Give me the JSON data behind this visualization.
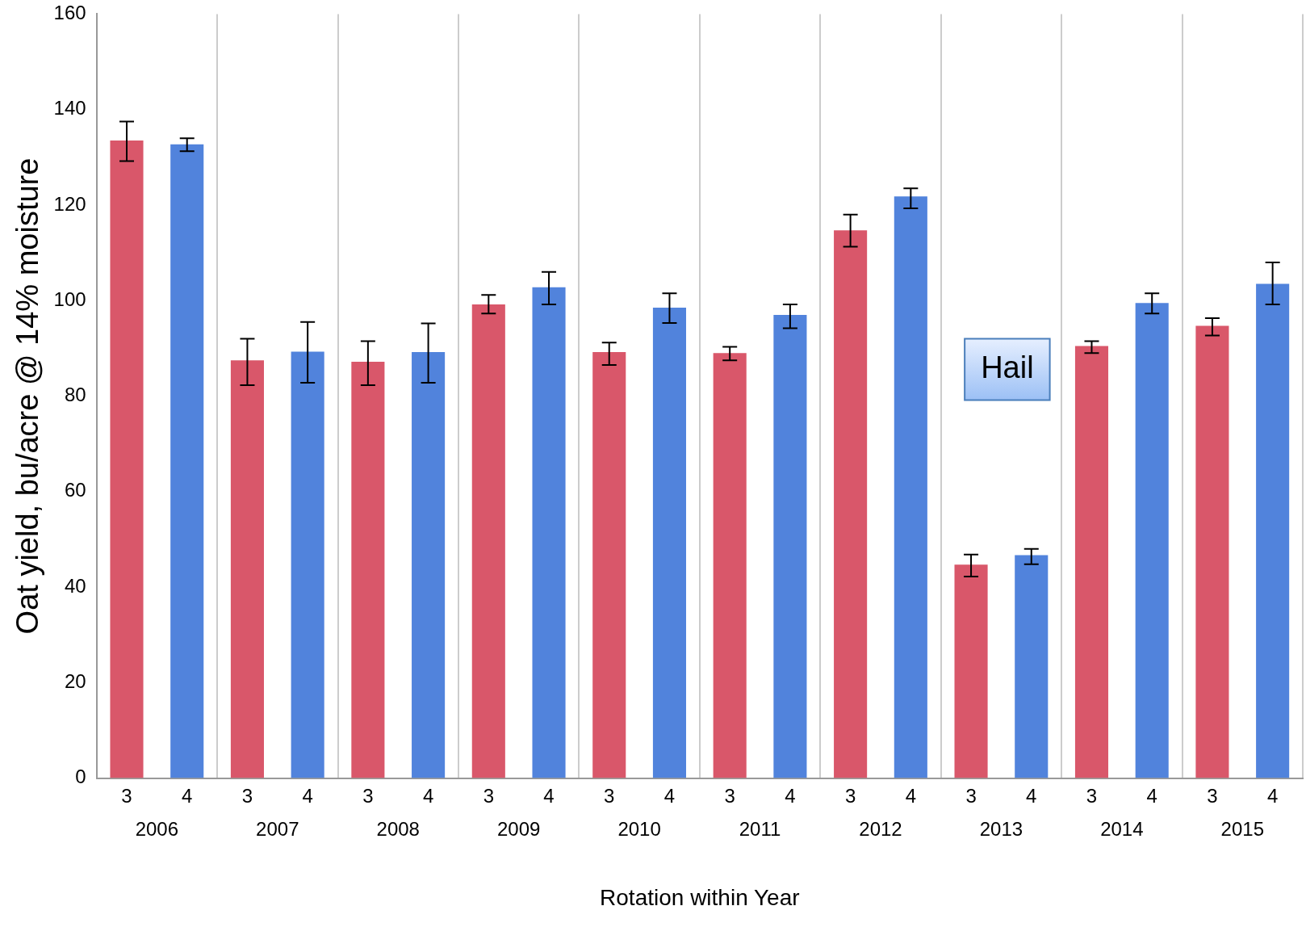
{
  "chart_data": {
    "type": "bar",
    "xlabel": "Rotation within Year",
    "ylabel": "Oat yield, bu/acre @ 14% moisture",
    "categories": [
      "2006",
      "2007",
      "2008",
      "2009",
      "2010",
      "2011",
      "2012",
      "2013",
      "2014",
      "2015"
    ],
    "series": [
      {
        "name": "3",
        "color": "#d9576a",
        "values": [
          133.5,
          87.5,
          87.2,
          99.2,
          89.2,
          89,
          114.7,
          44.7,
          90.5,
          94.7
        ],
        "errors": [
          [
            129.2,
            137.5
          ],
          [
            82.3,
            92
          ],
          [
            82.3,
            91.5
          ],
          [
            97.3,
            101.2
          ],
          [
            86.5,
            91.2
          ],
          [
            87.5,
            90.3
          ],
          [
            111.3,
            118
          ],
          [
            42.2,
            46.8
          ],
          [
            89,
            91.5
          ],
          [
            92.7,
            96.3
          ]
        ]
      },
      {
        "name": "4",
        "color": "#5183dc",
        "values": [
          132.7,
          89.3,
          89.2,
          102.8,
          98.5,
          97,
          121.8,
          46.7,
          99.5,
          103.5
        ],
        "errors": [
          [
            131.3,
            134
          ],
          [
            82.8,
            95.5
          ],
          [
            82.8,
            95.2
          ],
          [
            99.2,
            106
          ],
          [
            95.3,
            101.5
          ],
          [
            94.2,
            99.2
          ],
          [
            119.3,
            123.5
          ],
          [
            44.8,
            48
          ],
          [
            97.3,
            101.5
          ],
          [
            99.2,
            108
          ]
        ]
      }
    ],
    "ylim": [
      0,
      160
    ],
    "yticks": [
      0,
      20,
      40,
      60,
      80,
      100,
      120,
      140,
      160
    ],
    "grid": "x",
    "annotations": [
      "Hail"
    ]
  }
}
